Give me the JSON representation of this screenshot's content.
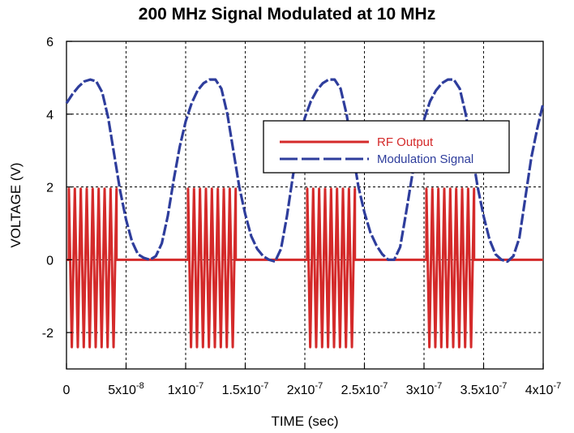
{
  "chart_data": {
    "type": "line",
    "title": "200 MHz Signal Modulated at 10 MHz",
    "xlabel": "TIME (sec)",
    "ylabel": "VOLTAGE (V)",
    "xlim": [
      0,
      4e-07
    ],
    "ylim": [
      -3,
      6
    ],
    "grid": true,
    "legend_position": "right",
    "x_ticks": [
      {
        "value": 0,
        "mant": "0",
        "exp": ""
      },
      {
        "value": 5e-08,
        "mant": "5x10",
        "exp": "-8"
      },
      {
        "value": 1e-07,
        "mant": "1x10",
        "exp": "-7"
      },
      {
        "value": 1.5e-07,
        "mant": "1.5x10",
        "exp": "-7"
      },
      {
        "value": 2e-07,
        "mant": "2x10",
        "exp": "-7"
      },
      {
        "value": 2.5e-07,
        "mant": "2.5x10",
        "exp": "-7"
      },
      {
        "value": 3e-07,
        "mant": "3x10",
        "exp": "-7"
      },
      {
        "value": 3.5e-07,
        "mant": "3.5x10",
        "exp": "-7"
      },
      {
        "value": 4e-07,
        "mant": "4x10",
        "exp": "-7"
      }
    ],
    "y_ticks": [
      {
        "value": 6,
        "label": "6"
      },
      {
        "value": 4,
        "label": "4"
      },
      {
        "value": 2,
        "label": "2"
      },
      {
        "value": 0,
        "label": "0"
      },
      {
        "value": -2,
        "label": "-2"
      }
    ],
    "series": [
      {
        "name": "RF Output",
        "color": "#d42a2a",
        "style": "solid",
        "carrier_frequency_hz": 200000000.0,
        "bursts": [
          {
            "start": 2e-09,
            "end": 4.2e-08,
            "high": 1.95,
            "low": -2.4
          },
          {
            "start": 1.02e-07,
            "end": 1.42e-07,
            "high": 1.95,
            "low": -2.4
          },
          {
            "start": 2.02e-07,
            "end": 2.42e-07,
            "high": 1.95,
            "low": -2.4
          },
          {
            "start": 3.02e-07,
            "end": 3.42e-07,
            "high": 1.95,
            "low": -2.4
          }
        ],
        "off_level": 0
      },
      {
        "name": "Modulation Signal",
        "color": "#2e3d9c",
        "style": "dashed",
        "x": [
          0,
          5e-09,
          1e-08,
          1.5e-08,
          2e-08,
          2.5e-08,
          3e-08,
          3.5e-08,
          4e-08,
          4.5e-08,
          5e-08,
          5.5e-08,
          6e-08,
          6.5e-08,
          7e-08,
          7.5e-08,
          8e-08,
          8.5e-08,
          9e-08,
          9.5e-08,
          1e-07,
          1.05e-07,
          1.1e-07,
          1.15e-07,
          1.2e-07,
          1.25e-07,
          1.3e-07,
          1.35e-07,
          1.4e-07,
          1.45e-07,
          1.5e-07,
          1.55e-07,
          1.6e-07,
          1.65e-07,
          1.7e-07,
          1.75e-07,
          1.8e-07,
          1.85e-07,
          1.9e-07,
          1.95e-07,
          2e-07,
          2.05e-07,
          2.1e-07,
          2.15e-07,
          2.2e-07,
          2.25e-07,
          2.3e-07,
          2.35e-07,
          2.4e-07,
          2.45e-07,
          2.5e-07,
          2.55e-07,
          2.6e-07,
          2.65e-07,
          2.7e-07,
          2.75e-07,
          2.8e-07,
          2.85e-07,
          2.9e-07,
          2.95e-07,
          3e-07,
          3.05e-07,
          3.1e-07,
          3.15e-07,
          3.2e-07,
          3.25e-07,
          3.3e-07,
          3.35e-07,
          3.4e-07,
          3.45e-07,
          3.5e-07,
          3.55e-07,
          3.6e-07,
          3.65e-07,
          3.7e-07,
          3.75e-07,
          3.8e-07,
          3.85e-07,
          3.9e-07,
          3.95e-07,
          4e-07
        ],
        "y": [
          4.3,
          4.55,
          4.75,
          4.9,
          4.95,
          4.9,
          4.6,
          3.9,
          2.9,
          1.9,
          1.1,
          0.5,
          0.15,
          0.05,
          0.0,
          0.1,
          0.45,
          1.2,
          2.2,
          3.1,
          3.8,
          4.3,
          4.65,
          4.85,
          4.95,
          4.95,
          4.7,
          4.0,
          3.0,
          2.0,
          1.25,
          0.65,
          0.3,
          0.1,
          0.0,
          -0.05,
          0.3,
          1.2,
          2.3,
          3.2,
          3.9,
          4.35,
          4.65,
          4.85,
          4.95,
          4.95,
          4.7,
          4.0,
          3.0,
          2.0,
          1.3,
          0.75,
          0.4,
          0.15,
          0.0,
          0.0,
          0.35,
          1.3,
          2.3,
          3.2,
          3.85,
          4.35,
          4.65,
          4.85,
          4.95,
          4.95,
          4.7,
          4.0,
          3.0,
          2.0,
          1.2,
          0.55,
          0.15,
          0.0,
          -0.05,
          0.1,
          0.6,
          1.7,
          2.8,
          3.6,
          4.3
        ]
      }
    ]
  }
}
